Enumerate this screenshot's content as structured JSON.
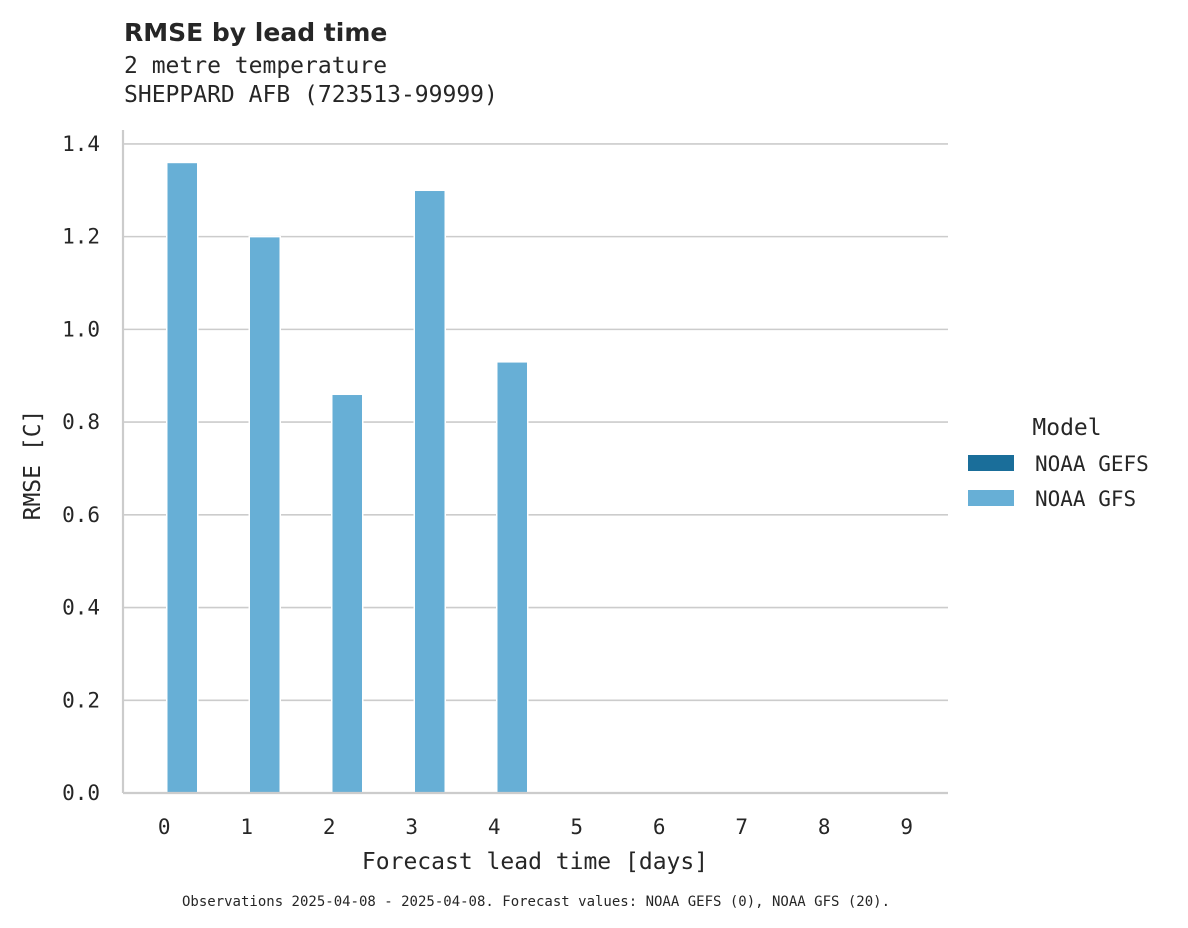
{
  "chart_data": {
    "type": "bar",
    "title": "RMSE by lead time",
    "subtitle_lines": [
      "2 metre temperature",
      "SHEPPARD AFB (723513-99999)"
    ],
    "xlabel": "Forecast lead time [days]",
    "ylabel": "RMSE [C]",
    "categories": [
      "0",
      "1",
      "2",
      "3",
      "4",
      "5",
      "6",
      "7",
      "8",
      "9"
    ],
    "ylim": [
      0,
      1.43
    ],
    "yticks": [
      0.0,
      0.2,
      0.4,
      0.6,
      0.8,
      1.0,
      1.2,
      1.4
    ],
    "ytick_labels": [
      "0.0",
      "0.2",
      "0.4",
      "0.6",
      "0.8",
      "1.0",
      "1.2",
      "1.4"
    ],
    "grid": "horizontal",
    "legend_position": "right",
    "legend_title": "Model",
    "series": [
      {
        "name": "NOAA GEFS",
        "color": "#1a6e9a",
        "values": [
          null,
          null,
          null,
          null,
          null,
          null,
          null,
          null,
          null,
          null
        ]
      },
      {
        "name": "NOAA GFS",
        "color": "#67afd6",
        "values": [
          1.36,
          1.2,
          0.86,
          1.3,
          0.93,
          null,
          null,
          null,
          null,
          null
        ]
      }
    ],
    "footnote": "Observations 2025-04-08 - 2025-04-08. Forecast values: NOAA GEFS (0), NOAA GFS (20)."
  }
}
